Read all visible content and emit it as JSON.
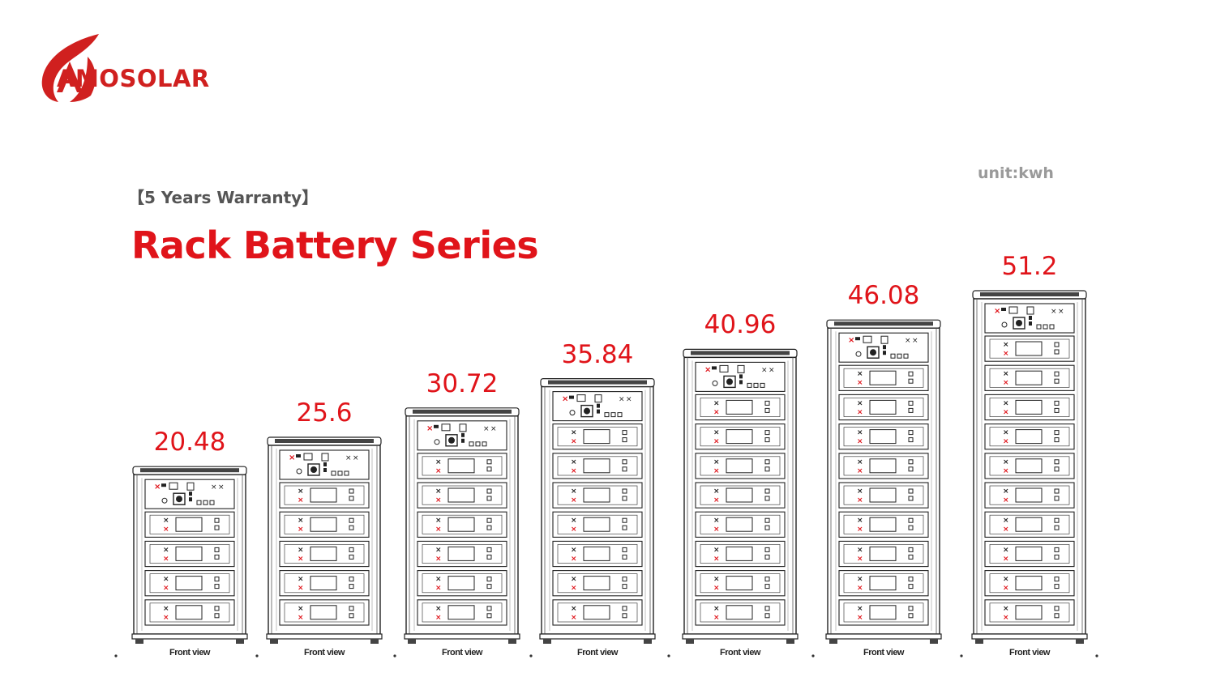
{
  "brand": {
    "name": "AMOSOLAR",
    "accent_color": "#d0201f"
  },
  "header": {
    "warranty": "【5 Years Warranty】",
    "title": "Rack Battery Series",
    "unit": "unit:kwh"
  },
  "racks": [
    {
      "capacity": "20.48",
      "modules": 4,
      "front_label": "Front view"
    },
    {
      "capacity": "25.6",
      "modules": 5,
      "front_label": "Front view"
    },
    {
      "capacity": "30.72",
      "modules": 6,
      "front_label": "Front view"
    },
    {
      "capacity": "35.84",
      "modules": 7,
      "front_label": "Front view"
    },
    {
      "capacity": "40.96",
      "modules": 8,
      "front_label": "Front view"
    },
    {
      "capacity": "46.08",
      "modules": 9,
      "front_label": "Front view"
    },
    {
      "capacity": "51.2",
      "modules": 10,
      "front_label": "Front view"
    }
  ]
}
